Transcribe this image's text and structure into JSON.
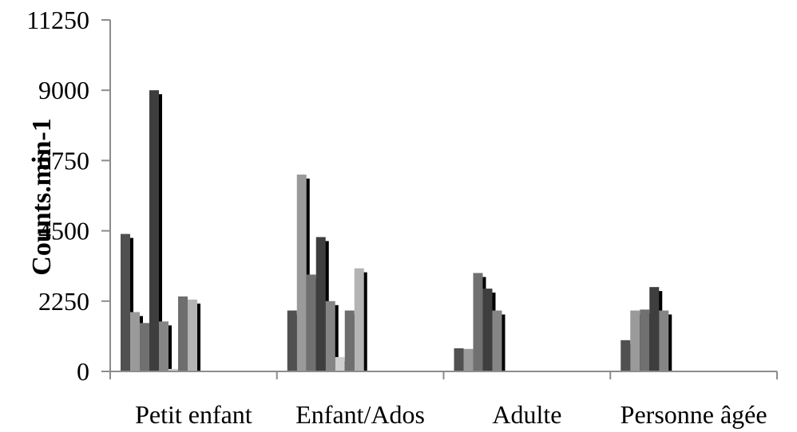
{
  "chart_data": {
    "type": "bar",
    "title": "",
    "xlabel": "",
    "ylabel": "Counts.min-1",
    "ylim": [
      0,
      11250
    ],
    "yticks": [
      "0",
      "2250",
      "4500",
      "6750",
      "9000",
      "11250"
    ],
    "grid": false,
    "legend": "none",
    "categories": [
      "Petit enfant",
      "Enfant/Ados",
      "Adulte",
      "Personne âgée"
    ],
    "series": [
      {
        "color": "#505050",
        "values": [
          4400,
          1950,
          740,
          1000
        ]
      },
      {
        "color": "#9a9a9a",
        "values": [
          1900,
          6300,
          720,
          1950
        ]
      },
      {
        "color": "#707070",
        "values": [
          1550,
          3100,
          3150,
          1980
        ]
      },
      {
        "color": "#3e3e3e",
        "values": [
          9000,
          4300,
          2650,
          2700
        ]
      },
      {
        "color": "#858585",
        "values": [
          1600,
          2250,
          1950,
          1950
        ]
      },
      {
        "color": "#cfcfcf",
        "values": [
          80,
          460,
          0,
          0
        ]
      },
      {
        "color": "#6e6e6e",
        "values": [
          2400,
          1950,
          0,
          0
        ]
      },
      {
        "color": "#b4b4b4",
        "values": [
          2300,
          3300,
          0,
          0
        ]
      }
    ]
  }
}
